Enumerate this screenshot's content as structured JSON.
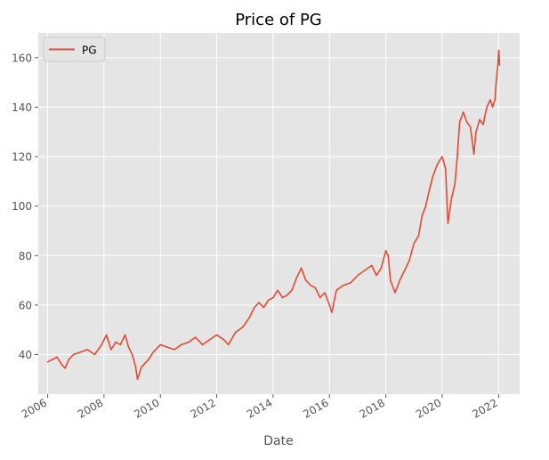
{
  "chart_data": {
    "type": "line",
    "title": "Price of PG",
    "xlabel": "Date",
    "ylabel": "",
    "xlim": [
      "2005-09-01",
      "2022-10-01"
    ],
    "ylim": [
      24,
      170
    ],
    "xticks": [
      "2006",
      "2008",
      "2010",
      "2012",
      "2014",
      "2016",
      "2018",
      "2020",
      "2022"
    ],
    "yticks": [
      40,
      60,
      80,
      100,
      120,
      140,
      160
    ],
    "grid": true,
    "legend": {
      "placement": "top-left",
      "entries": [
        "PG"
      ]
    },
    "series": [
      {
        "name": "PG",
        "color": "#E24A33",
        "points": [
          [
            "2006-01-01",
            37
          ],
          [
            "2006-03-01",
            38
          ],
          [
            "2006-05-01",
            39
          ],
          [
            "2006-07-01",
            36
          ],
          [
            "2006-08-15",
            34.5
          ],
          [
            "2006-10-01",
            38
          ],
          [
            "2006-12-01",
            40
          ],
          [
            "2007-03-01",
            41
          ],
          [
            "2007-06-01",
            42
          ],
          [
            "2007-09-01",
            40
          ],
          [
            "2007-12-01",
            44
          ],
          [
            "2008-02-01",
            48
          ],
          [
            "2008-04-01",
            42
          ],
          [
            "2008-06-01",
            45
          ],
          [
            "2008-08-01",
            44
          ],
          [
            "2008-10-01",
            48
          ],
          [
            "2008-11-15",
            43
          ],
          [
            "2009-01-01",
            40
          ],
          [
            "2009-02-15",
            35
          ],
          [
            "2009-03-10",
            30
          ],
          [
            "2009-05-01",
            35
          ],
          [
            "2009-08-01",
            38
          ],
          [
            "2009-10-01",
            41
          ],
          [
            "2010-01-01",
            44
          ],
          [
            "2010-04-01",
            43
          ],
          [
            "2010-07-01",
            42
          ],
          [
            "2010-10-01",
            44
          ],
          [
            "2011-01-01",
            45
          ],
          [
            "2011-04-01",
            47
          ],
          [
            "2011-07-01",
            44
          ],
          [
            "2011-10-01",
            46
          ],
          [
            "2012-01-01",
            48
          ],
          [
            "2012-04-01",
            46
          ],
          [
            "2012-06-01",
            44
          ],
          [
            "2012-09-01",
            49
          ],
          [
            "2012-12-01",
            51
          ],
          [
            "2013-03-01",
            55
          ],
          [
            "2013-05-01",
            59
          ],
          [
            "2013-07-01",
            61
          ],
          [
            "2013-09-01",
            59
          ],
          [
            "2013-11-01",
            62
          ],
          [
            "2014-01-01",
            63
          ],
          [
            "2014-03-01",
            66
          ],
          [
            "2014-05-01",
            63
          ],
          [
            "2014-07-01",
            64
          ],
          [
            "2014-09-01",
            66
          ],
          [
            "2014-11-01",
            71
          ],
          [
            "2015-01-01",
            75
          ],
          [
            "2015-03-01",
            70
          ],
          [
            "2015-05-01",
            68
          ],
          [
            "2015-07-01",
            67
          ],
          [
            "2015-09-01",
            63
          ],
          [
            "2015-11-01",
            65
          ],
          [
            "2016-01-01",
            60
          ],
          [
            "2016-02-01",
            57
          ],
          [
            "2016-04-01",
            66
          ],
          [
            "2016-07-01",
            68
          ],
          [
            "2016-10-01",
            69
          ],
          [
            "2017-01-01",
            72
          ],
          [
            "2017-04-01",
            74
          ],
          [
            "2017-07-01",
            76
          ],
          [
            "2017-09-01",
            72
          ],
          [
            "2017-11-01",
            75
          ],
          [
            "2018-01-01",
            82
          ],
          [
            "2018-02-01",
            80
          ],
          [
            "2018-03-01",
            70
          ],
          [
            "2018-05-01",
            65
          ],
          [
            "2018-07-01",
            70
          ],
          [
            "2018-09-01",
            74
          ],
          [
            "2018-11-01",
            78
          ],
          [
            "2019-01-01",
            85
          ],
          [
            "2019-03-01",
            88
          ],
          [
            "2019-04-15",
            96
          ],
          [
            "2019-06-01",
            100
          ],
          [
            "2019-07-15",
            106
          ],
          [
            "2019-09-01",
            112
          ],
          [
            "2019-11-01",
            117
          ],
          [
            "2020-01-01",
            120
          ],
          [
            "2020-02-15",
            115
          ],
          [
            "2020-03-15",
            93
          ],
          [
            "2020-05-01",
            103
          ],
          [
            "2020-06-15",
            109
          ],
          [
            "2020-07-15",
            120
          ],
          [
            "2020-08-15",
            134
          ],
          [
            "2020-10-01",
            138
          ],
          [
            "2020-11-15",
            134
          ],
          [
            "2021-01-01",
            132
          ],
          [
            "2021-02-15",
            121
          ],
          [
            "2021-03-15",
            130
          ],
          [
            "2021-05-01",
            135
          ],
          [
            "2021-06-15",
            133
          ],
          [
            "2021-08-01",
            140
          ],
          [
            "2021-09-15",
            143
          ],
          [
            "2021-10-15",
            140
          ],
          [
            "2021-11-15",
            143
          ],
          [
            "2021-12-01",
            150
          ],
          [
            "2021-12-20",
            156
          ],
          [
            "2022-01-04",
            163
          ],
          [
            "2022-01-15",
            157
          ]
        ]
      }
    ]
  }
}
